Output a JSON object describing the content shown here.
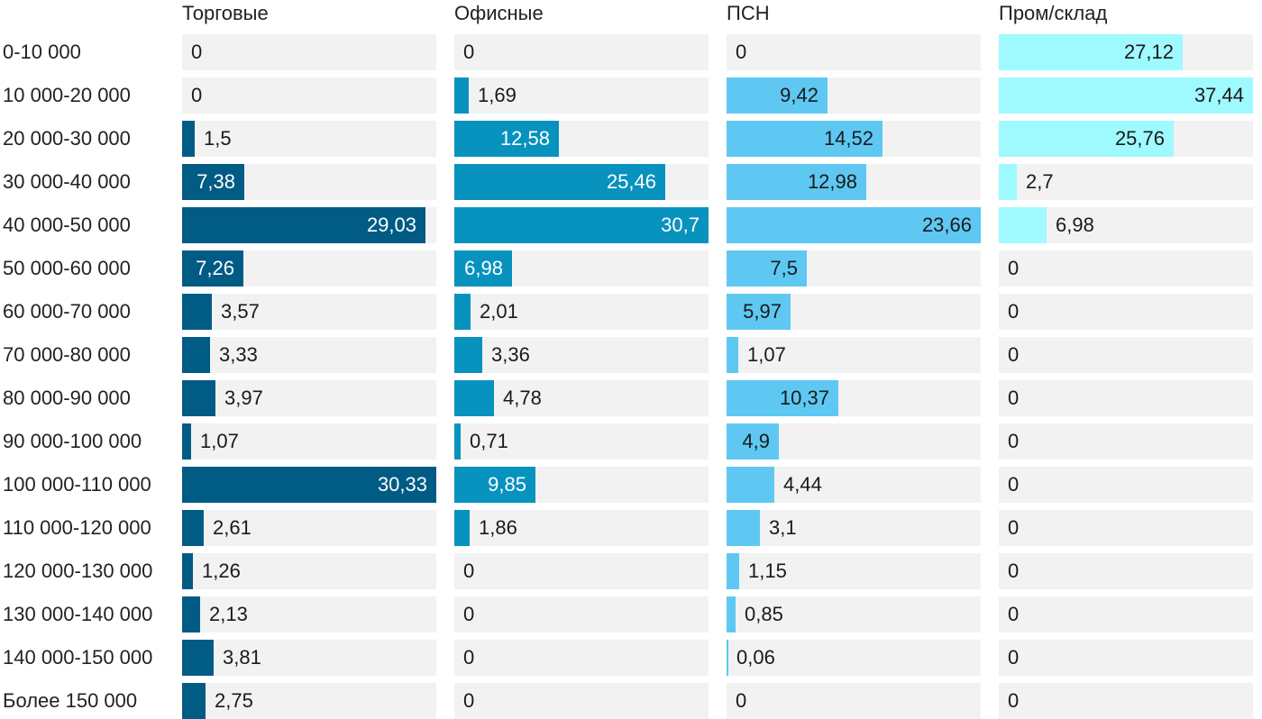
{
  "chart_data": {
    "type": "bar",
    "orientation": "horizontal",
    "layout": "small-multiples",
    "categories": [
      "0-10 000",
      "10 000-20 000",
      "20 000-30 000",
      "30 000-40 000",
      "40 000-50 000",
      "50 000-60 000",
      "60 000-70 000",
      "70 000-80 000",
      "80 000-90 000",
      "90 000-100 000",
      "100 000-110 000",
      "110 000-120 000",
      "120 000-130 000",
      "130 000-140 000",
      "140 000-150 000",
      "Более 150 000"
    ],
    "series": [
      {
        "name": "Торговые",
        "color": "#005b85",
        "labels": [
          "0",
          "0",
          "1,5",
          "7,38",
          "29,03",
          "7,26",
          "3,57",
          "3,33",
          "3,97",
          "1,07",
          "30,33",
          "2,61",
          "1,26",
          "2,13",
          "3,81",
          "2,75"
        ],
        "values": [
          0,
          0,
          1.5,
          7.38,
          29.03,
          7.26,
          3.57,
          3.33,
          3.97,
          1.07,
          30.33,
          2.61,
          1.26,
          2.13,
          3.81,
          2.75
        ],
        "max": 30.33,
        "label_inside_color": "#ffffff"
      },
      {
        "name": "Офисные",
        "color": "#0892be",
        "labels": [
          "0",
          "1,69",
          "12,58",
          "25,46",
          "30,7",
          "6,98",
          "2,01",
          "3,36",
          "4,78",
          "0,71",
          "9,85",
          "1,86",
          "0",
          "0",
          "0",
          "0"
        ],
        "values": [
          0,
          1.69,
          12.58,
          25.46,
          30.7,
          6.98,
          2.01,
          3.36,
          4.78,
          0.71,
          9.85,
          1.86,
          0,
          0,
          0,
          0
        ],
        "max": 30.7,
        "label_inside_color": "#ffffff"
      },
      {
        "name": "ПСН",
        "color": "#5ec8f2",
        "labels": [
          "0",
          "9,42",
          "14,52",
          "12,98",
          "23,66",
          "7,5",
          "5,97",
          "1,07",
          "10,37",
          "4,9",
          "4,44",
          "3,1",
          "1,15",
          "0,85",
          "0,06",
          "0"
        ],
        "values": [
          0,
          9.42,
          14.52,
          12.98,
          23.66,
          7.5,
          5.97,
          1.07,
          10.37,
          4.9,
          4.44,
          3.1,
          1.15,
          0.85,
          0.06,
          0
        ],
        "max": 23.66,
        "label_inside_color": "#1a1a1a"
      },
      {
        "name": "Пром/склад",
        "color": "#9ffaff",
        "labels": [
          "27,12",
          "37,44",
          "25,76",
          "2,7",
          "6,98",
          "0",
          "0",
          "0",
          "0",
          "0",
          "0",
          "0",
          "0",
          "0",
          "0",
          "0"
        ],
        "values": [
          27.12,
          37.44,
          25.76,
          2.7,
          6.98,
          0,
          0,
          0,
          0,
          0,
          0,
          0,
          0,
          0,
          0,
          0
        ],
        "max": 37.44,
        "label_inside_color": "#1a1a1a"
      }
    ],
    "title": "",
    "xlabel": "",
    "ylabel": "",
    "grid": false,
    "legend": "none"
  }
}
